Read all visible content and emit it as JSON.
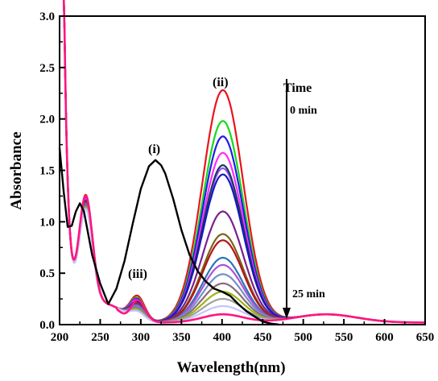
{
  "chart_data": {
    "type": "line",
    "title": "",
    "xlabel": "Wavelength(nm)",
    "ylabel": "Absorbance",
    "xlim": [
      200,
      650
    ],
    "ylim": [
      0.0,
      3.0
    ],
    "x_ticks": [
      200,
      250,
      300,
      350,
      400,
      450,
      500,
      550,
      600,
      650
    ],
    "x_tick_labels": [
      "200",
      "250",
      "300",
      "350",
      "400",
      "450",
      "500",
      "550",
      "600",
      "650"
    ],
    "y_ticks": [
      0.0,
      0.5,
      1.0,
      1.5,
      2.0,
      2.5,
      3.0
    ],
    "y_tick_labels": [
      "0.0",
      "0.5",
      "1.0",
      "1.5",
      "2.0",
      "2.5",
      "3.0"
    ],
    "grid": false,
    "annotations": {
      "peak_i": "(i)",
      "peak_ii": "(ii)",
      "peak_iii": "(iii)",
      "time_label": "Time",
      "time_start": "0 min",
      "time_end": "25 min"
    },
    "series_i": {
      "label": "(i)",
      "color": "#000000",
      "x": [
        200,
        205,
        210,
        215,
        220,
        225,
        230,
        240,
        250,
        260,
        270,
        280,
        290,
        300,
        310,
        318,
        325,
        330,
        340,
        350,
        360,
        370,
        380,
        390,
        400,
        410,
        420,
        430,
        440,
        450,
        460,
        470
      ],
      "y": [
        1.72,
        1.3,
        0.95,
        0.96,
        1.1,
        1.18,
        1.1,
        0.68,
        0.4,
        0.2,
        0.35,
        0.62,
        0.98,
        1.32,
        1.54,
        1.6,
        1.55,
        1.47,
        1.22,
        0.92,
        0.68,
        0.52,
        0.42,
        0.35,
        0.32,
        0.28,
        0.2,
        0.13,
        0.08,
        0.03,
        0.01,
        0.0
      ]
    },
    "series_time": {
      "label": "(ii) 0 min to 25 min",
      "colors": [
        "#e8141c",
        "#18d818",
        "#1e1ee8",
        "#ff2cff",
        "#a050ff",
        "#143c5a",
        "#1818c0",
        "#7a2090",
        "#7a6414",
        "#b4141c",
        "#2878b4",
        "#b050d8",
        "#7090c8",
        "#8a6a7a",
        "#9ab414",
        "#a0a0a0",
        "#c4c4ff"
      ],
      "peak_values": [
        2.26,
        1.96,
        1.81,
        1.65,
        1.5,
        1.53,
        1.44,
        1.08,
        0.86,
        0.8,
        0.63,
        0.56,
        0.47,
        0.38,
        0.3,
        0.23,
        0.16
      ],
      "uv_peak_values": [
        1.37,
        1.35,
        1.34,
        1.33,
        1.32,
        1.31,
        1.3,
        1.3,
        1.29,
        1.28,
        1.28,
        1.27,
        1.26,
        1.26,
        1.25,
        1.24,
        1.23
      ],
      "peak_iii_values": [
        0.35,
        0.33,
        0.32,
        0.31,
        0.3,
        0.29,
        0.29,
        0.28,
        0.27,
        0.27,
        0.26,
        0.25,
        0.24,
        0.23,
        0.22,
        0.21,
        0.2
      ]
    },
    "final_series": {
      "label": "25 min final trace",
      "color": "#ff1480"
    }
  }
}
